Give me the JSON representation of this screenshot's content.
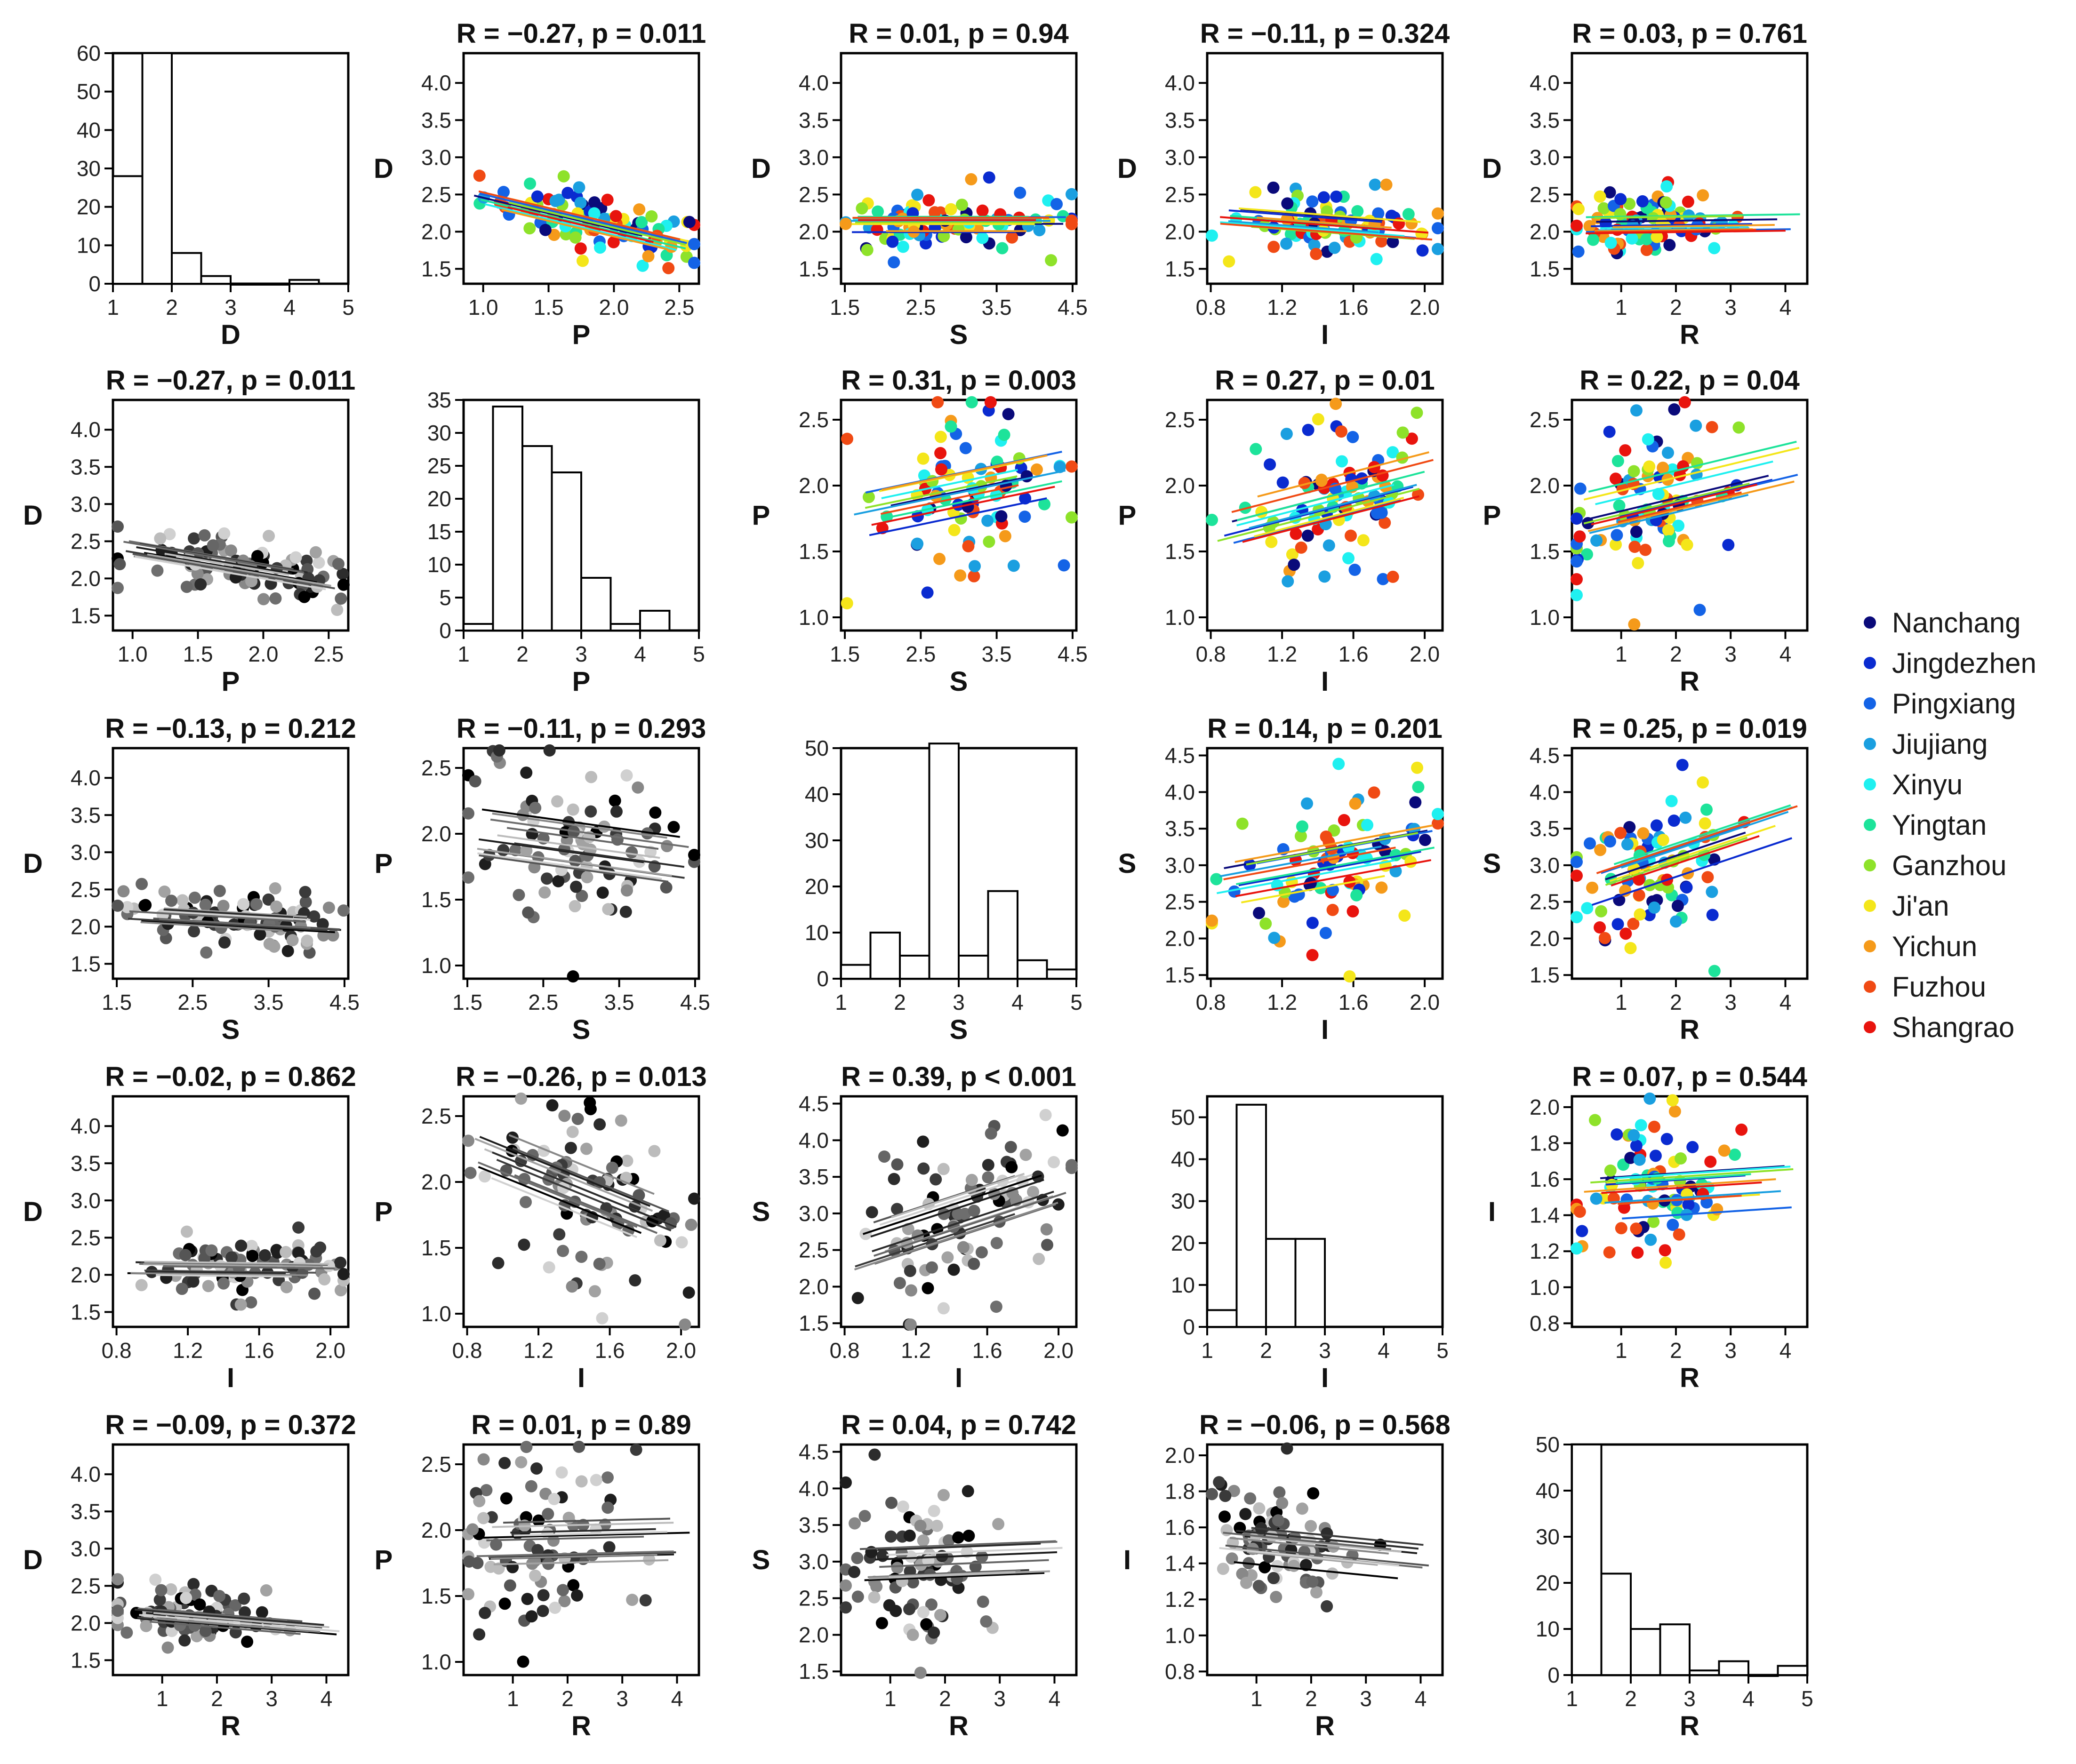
{
  "variables": [
    "D",
    "P",
    "S",
    "I",
    "R"
  ],
  "palette": {
    "Nanchang": "#0a0a7a",
    "Jingdezhen": "#0a2bd0",
    "Pingxiang": "#1463e6",
    "Jiujiang": "#1a9fe0",
    "Xinyu": "#1ff0f0",
    "Yingtan": "#1de39a",
    "Ganzhou": "#8ee22a",
    "Ji'an": "#f4e61a",
    "Yichun": "#f59a1a",
    "Fuzhou": "#f04a14",
    "Shangrao": "#e8140e"
  },
  "legend": {
    "items": [
      {
        "label": "Nanchang",
        "color": "#0a0a7a"
      },
      {
        "label": "Jingdezhen",
        "color": "#0a2bd0"
      },
      {
        "label": "Pingxiang",
        "color": "#1463e6"
      },
      {
        "label": "Jiujiang",
        "color": "#1a9fe0"
      },
      {
        "label": "Xinyu",
        "color": "#1ff0f0"
      },
      {
        "label": "Yingtan",
        "color": "#1de39a"
      },
      {
        "label": "Ganzhou",
        "color": "#8ee22a"
      },
      {
        "label": "Ji'an",
        "color": "#f4e61a"
      },
      {
        "label": "Yichun",
        "color": "#f59a1a"
      },
      {
        "label": "Fuzhou",
        "color": "#f04a14"
      },
      {
        "label": "Shangrao",
        "color": "#e8140e"
      }
    ]
  },
  "chart_data": [
    {
      "type": "histogram",
      "row": 0,
      "col": 0,
      "xlabel": "D",
      "ylabel": "",
      "xlim": [
        1,
        5
      ],
      "ylim": [
        0,
        60
      ],
      "xticks": [
        1,
        2,
        3,
        4,
        5
      ],
      "yticks": [
        0,
        10,
        20,
        30,
        40,
        50,
        60
      ],
      "bins": [
        [
          1.0,
          1.5,
          28
        ],
        [
          1.5,
          2.0,
          60
        ],
        [
          2.0,
          2.5,
          8
        ],
        [
          2.5,
          3.0,
          2
        ],
        [
          3.0,
          3.5,
          0
        ],
        [
          3.5,
          4.0,
          0
        ],
        [
          4.0,
          4.5,
          1
        ]
      ]
    },
    {
      "type": "scatter",
      "style": "color",
      "row": 0,
      "col": 1,
      "title": "R = −0.27, p = 0.011",
      "xlabel": "P",
      "ylabel": "D",
      "xlim": [
        0.85,
        2.65
      ],
      "ylim": [
        1.3,
        4.4
      ],
      "xticks": [
        1.0,
        1.5,
        2.0,
        2.5
      ],
      "yticks": [
        1.5,
        2.0,
        2.5,
        3.0,
        3.5,
        4.0
      ],
      "slope": -0.42
    },
    {
      "type": "scatter",
      "style": "color",
      "row": 0,
      "col": 2,
      "title": "R = 0.01, p = 0.94",
      "xlabel": "S",
      "ylabel": "D",
      "xlim": [
        1.45,
        4.55
      ],
      "ylim": [
        1.3,
        4.4
      ],
      "xticks": [
        1.5,
        2.5,
        3.5,
        4.5
      ],
      "yticks": [
        1.5,
        2.0,
        2.5,
        3.0,
        3.5,
        4.0
      ],
      "slope": 0.0
    },
    {
      "type": "scatter",
      "style": "color",
      "row": 0,
      "col": 3,
      "title": "R = −0.11, p = 0.324",
      "xlabel": "I",
      "ylabel": "D",
      "xlim": [
        0.78,
        2.1
      ],
      "ylim": [
        1.3,
        4.4
      ],
      "xticks": [
        0.8,
        1.2,
        1.6,
        2.0
      ],
      "yticks": [
        1.5,
        2.0,
        2.5,
        3.0,
        3.5,
        4.0
      ],
      "slope": -0.18
    },
    {
      "type": "scatter",
      "style": "color",
      "row": 0,
      "col": 4,
      "title": "R = 0.03, p = 0.761",
      "xlabel": "R",
      "ylabel": "D",
      "xlim": [
        0.1,
        4.4
      ],
      "ylim": [
        1.3,
        4.4
      ],
      "xticks": [
        1,
        2,
        3,
        4
      ],
      "yticks": [
        1.5,
        2.0,
        2.5,
        3.0,
        3.5,
        4.0
      ],
      "slope": 0.01
    },
    {
      "type": "scatter",
      "style": "gray",
      "row": 1,
      "col": 0,
      "title": "R = −0.27, p = 0.011",
      "xlabel": "P",
      "ylabel": "D",
      "xlim": [
        0.85,
        2.65
      ],
      "ylim": [
        1.3,
        4.4
      ],
      "xticks": [
        1.0,
        1.5,
        2.0,
        2.5
      ],
      "yticks": [
        1.5,
        2.0,
        2.5,
        3.0,
        3.5,
        4.0
      ],
      "slope": -0.3
    },
    {
      "type": "histogram",
      "row": 1,
      "col": 1,
      "xlabel": "P",
      "ylabel": "",
      "xlim": [
        1,
        5
      ],
      "ylim": [
        0,
        35
      ],
      "xticks": [
        1,
        2,
        3,
        4,
        5
      ],
      "yticks": [
        0,
        5,
        10,
        15,
        20,
        25,
        30,
        35
      ],
      "bins": [
        [
          1.0,
          1.5,
          1
        ],
        [
          1.5,
          2.0,
          34
        ],
        [
          2.0,
          2.5,
          28
        ],
        [
          2.5,
          3.0,
          24
        ],
        [
          3.0,
          3.5,
          8
        ],
        [
          3.5,
          4.0,
          1
        ],
        [
          4.0,
          4.5,
          3
        ]
      ]
    },
    {
      "type": "scatter",
      "style": "color",
      "row": 1,
      "col": 2,
      "title": "R = 0.31, p = 0.003",
      "xlabel": "S",
      "ylabel": "P",
      "xlim": [
        1.45,
        4.55
      ],
      "ylim": [
        0.9,
        2.65
      ],
      "xticks": [
        1.5,
        2.5,
        3.5,
        4.5
      ],
      "yticks": [
        1.0,
        1.5,
        2.0,
        2.5
      ],
      "slope": 0.12
    },
    {
      "type": "scatter",
      "style": "color",
      "row": 1,
      "col": 3,
      "title": "R = 0.27, p = 0.01",
      "xlabel": "I",
      "ylabel": "P",
      "xlim": [
        0.78,
        2.1
      ],
      "ylim": [
        0.9,
        2.65
      ],
      "xticks": [
        0.8,
        1.2,
        1.6,
        2.0
      ],
      "yticks": [
        1.0,
        1.5,
        2.0,
        2.5
      ],
      "slope": 0.35
    },
    {
      "type": "scatter",
      "style": "color",
      "row": 1,
      "col": 4,
      "title": "R = 0.22, p = 0.04",
      "xlabel": "R",
      "ylabel": "P",
      "xlim": [
        0.1,
        4.4
      ],
      "ylim": [
        0.9,
        2.65
      ],
      "xticks": [
        1,
        2,
        3,
        4
      ],
      "yticks": [
        1.0,
        1.5,
        2.0,
        2.5
      ],
      "slope": 0.1
    },
    {
      "type": "scatter",
      "style": "gray",
      "row": 2,
      "col": 0,
      "title": "R = −0.13, p = 0.212",
      "xlabel": "S",
      "ylabel": "D",
      "xlim": [
        1.45,
        4.55
      ],
      "ylim": [
        1.3,
        4.4
      ],
      "xticks": [
        1.5,
        2.5,
        3.5,
        4.5
      ],
      "yticks": [
        1.5,
        2.0,
        2.5,
        3.0,
        3.5,
        4.0
      ],
      "slope": -0.06
    },
    {
      "type": "scatter",
      "style": "gray",
      "row": 2,
      "col": 1,
      "title": "R = −0.11, p = 0.293",
      "xlabel": "S",
      "ylabel": "P",
      "xlim": [
        1.45,
        4.55
      ],
      "ylim": [
        0.9,
        2.65
      ],
      "xticks": [
        1.5,
        2.5,
        3.5,
        4.5
      ],
      "yticks": [
        1.0,
        1.5,
        2.0,
        2.5
      ],
      "slope": -0.08
    },
    {
      "type": "histogram",
      "row": 2,
      "col": 2,
      "xlabel": "S",
      "ylabel": "",
      "xlim": [
        1,
        5
      ],
      "ylim": [
        0,
        50
      ],
      "xticks": [
        1,
        2,
        3,
        4,
        5
      ],
      "yticks": [
        0,
        10,
        20,
        30,
        40,
        50
      ],
      "bins": [
        [
          1.0,
          1.5,
          3
        ],
        [
          1.5,
          2.0,
          10
        ],
        [
          2.0,
          2.5,
          5
        ],
        [
          2.5,
          3.0,
          51
        ],
        [
          3.0,
          3.5,
          5
        ],
        [
          3.5,
          4.0,
          19
        ],
        [
          4.0,
          4.5,
          4
        ],
        [
          4.5,
          5.0,
          2
        ]
      ]
    },
    {
      "type": "scatter",
      "style": "color",
      "row": 2,
      "col": 3,
      "title": "R = 0.14, p = 0.201",
      "xlabel": "I",
      "ylabel": "S",
      "xlim": [
        0.78,
        2.1
      ],
      "ylim": [
        1.45,
        4.6
      ],
      "xticks": [
        0.8,
        1.2,
        1.6,
        2.0
      ],
      "yticks": [
        1.5,
        2.0,
        2.5,
        3.0,
        3.5,
        4.0,
        4.5
      ],
      "slope": 0.45
    },
    {
      "type": "scatter",
      "style": "color",
      "row": 2,
      "col": 4,
      "title": "R = 0.25, p = 0.019",
      "xlabel": "R",
      "ylabel": "S",
      "xlim": [
        0.1,
        4.4
      ],
      "ylim": [
        1.45,
        4.6
      ],
      "xticks": [
        1,
        2,
        3,
        4
      ],
      "yticks": [
        1.5,
        2.0,
        2.5,
        3.0,
        3.5,
        4.0,
        4.5
      ],
      "slope": 0.25
    },
    {
      "type": "scatter",
      "style": "gray",
      "row": 3,
      "col": 0,
      "title": "R = −0.02, p = 0.862",
      "xlabel": "I",
      "ylabel": "D",
      "xlim": [
        0.78,
        2.1
      ],
      "ylim": [
        1.3,
        4.4
      ],
      "xticks": [
        0.8,
        1.2,
        1.6,
        2.0
      ],
      "yticks": [
        1.5,
        2.0,
        2.5,
        3.0,
        3.5,
        4.0
      ],
      "slope": -0.03
    },
    {
      "type": "scatter",
      "style": "gray",
      "row": 3,
      "col": 1,
      "title": "R = −0.26, p = 0.013",
      "xlabel": "I",
      "ylabel": "P",
      "xlim": [
        0.78,
        2.1
      ],
      "ylim": [
        0.9,
        2.65
      ],
      "xticks": [
        0.8,
        1.2,
        1.6,
        2.0
      ],
      "yticks": [
        1.0,
        1.5,
        2.0,
        2.5
      ],
      "slope": -0.55
    },
    {
      "type": "scatter",
      "style": "gray",
      "row": 3,
      "col": 2,
      "title": "R = 0.39, p < 0.001",
      "xlabel": "I",
      "ylabel": "S",
      "xlim": [
        0.78,
        2.1
      ],
      "ylim": [
        1.45,
        4.6
      ],
      "xticks": [
        0.8,
        1.2,
        1.6,
        2.0
      ],
      "yticks": [
        1.5,
        2.0,
        2.5,
        3.0,
        3.5,
        4.0,
        4.5
      ],
      "slope": 0.8
    },
    {
      "type": "histogram",
      "row": 3,
      "col": 3,
      "xlabel": "I",
      "ylabel": "",
      "xlim": [
        1,
        5
      ],
      "ylim": [
        0,
        55
      ],
      "xticks": [
        1,
        2,
        3,
        4,
        5
      ],
      "yticks": [
        0,
        10,
        20,
        30,
        40,
        50
      ],
      "bins": [
        [
          1.0,
          1.5,
          4
        ],
        [
          1.5,
          2.0,
          53
        ],
        [
          2.0,
          2.5,
          21
        ],
        [
          2.5,
          3.0,
          21
        ]
      ]
    },
    {
      "type": "scatter",
      "style": "color",
      "row": 3,
      "col": 4,
      "title": "R = 0.07, p = 0.544",
      "xlabel": "R",
      "ylabel": "I",
      "xlim": [
        0.1,
        4.4
      ],
      "ylim": [
        0.78,
        2.06
      ],
      "xticks": [
        1,
        2,
        3,
        4
      ],
      "yticks": [
        0.8,
        1.0,
        1.2,
        1.4,
        1.6,
        1.8,
        2.0
      ],
      "slope": 0.02
    },
    {
      "type": "scatter",
      "style": "gray",
      "row": 4,
      "col": 0,
      "title": "R = −0.09, p = 0.372",
      "xlabel": "R",
      "ylabel": "D",
      "xlim": [
        0.1,
        4.4
      ],
      "ylim": [
        1.3,
        4.4
      ],
      "xticks": [
        1,
        2,
        3,
        4
      ],
      "yticks": [
        1.5,
        2.0,
        2.5,
        3.0,
        3.5,
        4.0
      ],
      "slope": -0.06
    },
    {
      "type": "scatter",
      "style": "gray",
      "row": 4,
      "col": 1,
      "title": "R = 0.01, p = 0.89",
      "xlabel": "R",
      "ylabel": "P",
      "xlim": [
        0.1,
        4.4
      ],
      "ylim": [
        0.9,
        2.65
      ],
      "xticks": [
        1,
        2,
        3,
        4
      ],
      "yticks": [
        1.0,
        1.5,
        2.0,
        2.5
      ],
      "slope": 0.01
    },
    {
      "type": "scatter",
      "style": "gray",
      "row": 4,
      "col": 2,
      "title": "R = 0.04, p = 0.742",
      "xlabel": "R",
      "ylabel": "S",
      "xlim": [
        0.1,
        4.4
      ],
      "ylim": [
        1.45,
        4.6
      ],
      "xticks": [
        1,
        2,
        3,
        4
      ],
      "yticks": [
        1.5,
        2.0,
        2.5,
        3.0,
        3.5,
        4.0,
        4.5
      ],
      "slope": 0.03
    },
    {
      "type": "scatter",
      "style": "gray",
      "row": 4,
      "col": 3,
      "title": "R = −0.06, p = 0.568",
      "xlabel": "R",
      "ylabel": "I",
      "xlim": [
        0.1,
        4.4
      ],
      "ylim": [
        0.78,
        2.06
      ],
      "xticks": [
        1,
        2,
        3,
        4
      ],
      "yticks": [
        0.8,
        1.0,
        1.2,
        1.4,
        1.6,
        1.8,
        2.0
      ],
      "slope": -0.03
    },
    {
      "type": "histogram",
      "row": 4,
      "col": 4,
      "xlabel": "R",
      "ylabel": "",
      "xlim": [
        1,
        5
      ],
      "ylim": [
        0,
        50
      ],
      "xticks": [
        1,
        2,
        3,
        4,
        5
      ],
      "yticks": [
        0,
        10,
        20,
        30,
        40,
        50
      ],
      "bins": [
        [
          1.0,
          1.5,
          50
        ],
        [
          1.5,
          2.0,
          22
        ],
        [
          2.0,
          2.5,
          10
        ],
        [
          2.5,
          3.0,
          11
        ],
        [
          3.0,
          3.5,
          1
        ],
        [
          3.5,
          4.0,
          3
        ],
        [
          4.0,
          4.5,
          0
        ],
        [
          4.5,
          5.0,
          2
        ]
      ]
    }
  ]
}
